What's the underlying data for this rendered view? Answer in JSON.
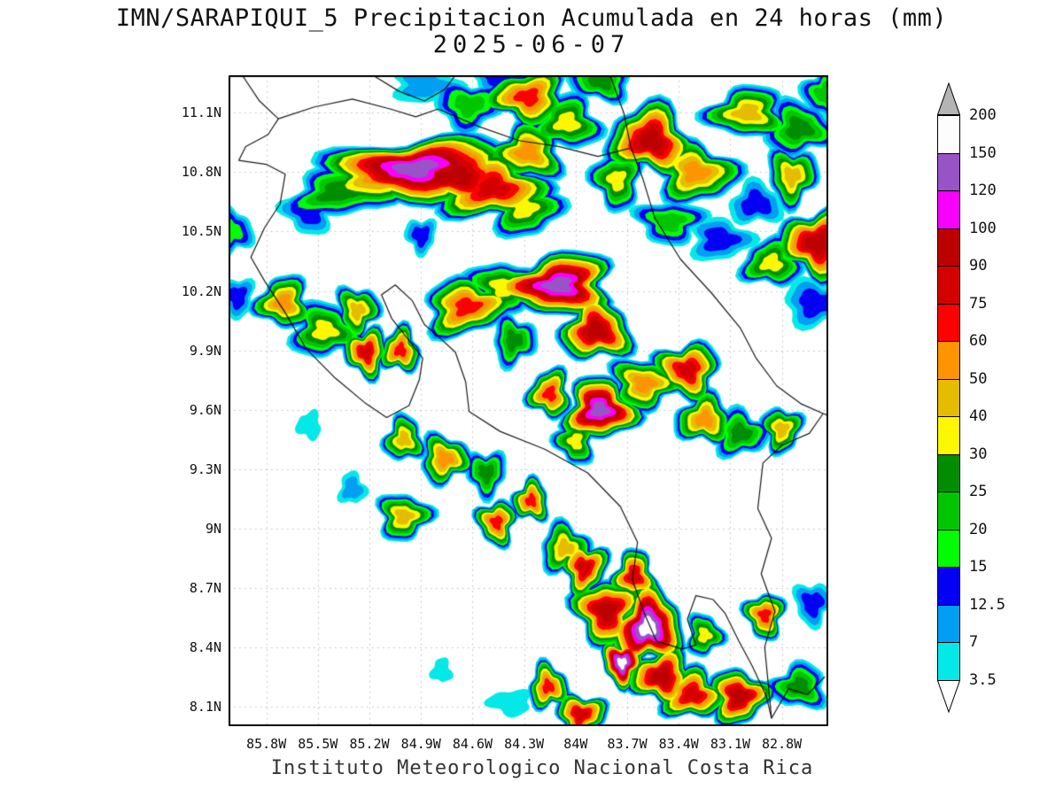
{
  "header": {
    "title": "IMN/SARAPIQUI_5 Precipitacion Acumulada en 24 horas (mm)",
    "subtitle": "2025-06-07"
  },
  "footer": {
    "credit": "Instituto Meteorologico Nacional Costa Rica"
  },
  "chart_data": {
    "type": "heatmap",
    "title": "IMN/SARAPIQUI_5 Precipitacion Acumulada en 24 horas (mm)",
    "date": "2025-06-07",
    "units": "mm",
    "region": "Costa Rica",
    "grid": true,
    "legend_position": "right",
    "extent": {
      "lon_min": -86.02,
      "lon_max": -82.53,
      "lat_min": 8.0,
      "lat_max": 11.29
    },
    "x_axis": {
      "ticks": [
        {
          "label": "85.8W",
          "lon": -85.8
        },
        {
          "label": "85.5W",
          "lon": -85.5
        },
        {
          "label": "85.2W",
          "lon": -85.2
        },
        {
          "label": "84.9W",
          "lon": -84.9
        },
        {
          "label": "84.6W",
          "lon": -84.6
        },
        {
          "label": "84.3W",
          "lon": -84.3
        },
        {
          "label": "84W",
          "lon": -84.0
        },
        {
          "label": "83.7W",
          "lon": -83.7
        },
        {
          "label": "83.4W",
          "lon": -83.4
        },
        {
          "label": "83.1W",
          "lon": -83.1
        },
        {
          "label": "82.8W",
          "lon": -82.8
        }
      ]
    },
    "y_axis": {
      "ticks": [
        {
          "label": "11.1N",
          "lat": 11.1
        },
        {
          "label": "10.8N",
          "lat": 10.8
        },
        {
          "label": "10.5N",
          "lat": 10.5
        },
        {
          "label": "10.2N",
          "lat": 10.2
        },
        {
          "label": "9.9N",
          "lat": 9.9
        },
        {
          "label": "9.6N",
          "lat": 9.6
        },
        {
          "label": "9.3N",
          "lat": 9.3
        },
        {
          "label": "9N",
          "lat": 9.0
        },
        {
          "label": "8.7N",
          "lat": 8.7
        },
        {
          "label": "8.4N",
          "lat": 8.4
        },
        {
          "label": "8.1N",
          "lat": 8.1
        }
      ]
    },
    "colorbar": {
      "levels": [
        3.5,
        7,
        12.5,
        15,
        20,
        25,
        30,
        40,
        50,
        60,
        75,
        90,
        100,
        120,
        150,
        200
      ],
      "colors": [
        "#04E9E7",
        "#019FF4",
        "#0300F4",
        "#02FD02",
        "#01C501",
        "#008E00",
        "#FDF802",
        "#E5BC00",
        "#FD9500",
        "#FD0000",
        "#D40000",
        "#BC0000",
        "#F800FD",
        "#9854C6",
        "#FDFDFD"
      ],
      "under_color": "#FFFFFF",
      "over_color": "#B4B4B4"
    },
    "cell_format": [
      "lon",
      "lat",
      "radius_deg",
      "peak_mm",
      "elongation",
      "rotation_deg"
    ],
    "precip_cells": [
      [
        -85.38,
        10.7,
        0.2,
        25,
        1.5,
        -8
      ],
      [
        -85.12,
        10.79,
        0.26,
        50,
        1.7,
        -6
      ],
      [
        -84.93,
        10.82,
        0.3,
        120,
        1.8,
        -6
      ],
      [
        -84.7,
        10.78,
        0.26,
        90,
        1.6,
        -4
      ],
      [
        -84.48,
        10.72,
        0.24,
        75,
        1.4,
        0
      ],
      [
        -84.3,
        10.62,
        0.18,
        30,
        1.2,
        8
      ],
      [
        -85.55,
        10.6,
        0.13,
        12.5,
        1.2,
        0
      ],
      [
        -84.28,
        10.9,
        0.18,
        50,
        1.2,
        0
      ],
      [
        -86.0,
        10.5,
        0.12,
        15,
        1,
        0
      ],
      [
        -84.62,
        11.14,
        0.16,
        20,
        1.3,
        0
      ],
      [
        -84.28,
        11.18,
        0.19,
        60,
        1.3,
        0
      ],
      [
        -84.05,
        11.05,
        0.17,
        30,
        1.2,
        0
      ],
      [
        -84.88,
        11.24,
        0.13,
        7,
        1.5,
        0
      ],
      [
        -84.45,
        11.28,
        0.12,
        12.5,
        1.3,
        0
      ],
      [
        -83.85,
        11.26,
        0.14,
        25,
        1.3,
        0
      ],
      [
        -83.56,
        10.96,
        0.22,
        90,
        1.2,
        18
      ],
      [
        -83.3,
        10.8,
        0.2,
        50,
        1.25,
        10
      ],
      [
        -83.76,
        10.76,
        0.15,
        30,
        1,
        0
      ],
      [
        -83.0,
        11.1,
        0.18,
        40,
        1.35,
        0
      ],
      [
        -82.7,
        11.02,
        0.17,
        25,
        1.2,
        0
      ],
      [
        -82.74,
        10.78,
        0.15,
        40,
        1,
        0
      ],
      [
        -82.6,
        10.44,
        0.2,
        90,
        1.1,
        0
      ],
      [
        -82.86,
        10.34,
        0.15,
        30,
        1.2,
        0
      ],
      [
        -83.16,
        10.46,
        0.14,
        12.5,
        1.3,
        0
      ],
      [
        -83.45,
        10.55,
        0.15,
        20,
        1.35,
        0
      ],
      [
        -82.55,
        11.2,
        0.13,
        20,
        1,
        0
      ],
      [
        -82.95,
        10.64,
        0.13,
        12.5,
        1.2,
        0
      ],
      [
        -82.6,
        10.14,
        0.15,
        12.5,
        1.3,
        0
      ],
      [
        -85.97,
        10.17,
        0.1,
        12.5,
        1,
        0
      ],
      [
        -85.7,
        10.14,
        0.15,
        50,
        1.1,
        0
      ],
      [
        -85.46,
        10.0,
        0.17,
        30,
        1.2,
        0
      ],
      [
        -85.27,
        10.1,
        0.13,
        40,
        1,
        0
      ],
      [
        -85.22,
        9.89,
        0.13,
        75,
        1,
        0
      ],
      [
        -85.02,
        9.9,
        0.12,
        60,
        1,
        0
      ],
      [
        -84.63,
        10.12,
        0.2,
        60,
        1.35,
        -8
      ],
      [
        -84.42,
        10.22,
        0.17,
        30,
        1.25,
        0
      ],
      [
        -84.1,
        10.23,
        0.24,
        120,
        1.45,
        -5
      ],
      [
        -83.88,
        10.0,
        0.19,
        90,
        1.15,
        0
      ],
      [
        -84.36,
        9.95,
        0.13,
        25,
        1,
        0
      ],
      [
        -84.9,
        10.48,
        0.09,
        12.5,
        1,
        0
      ],
      [
        -84.15,
        9.68,
        0.13,
        60,
        1,
        0
      ],
      [
        -83.86,
        9.6,
        0.19,
        120,
        1.15,
        0
      ],
      [
        -83.6,
        9.73,
        0.17,
        50,
        1.25,
        0
      ],
      [
        -83.35,
        9.8,
        0.17,
        75,
        1.15,
        0
      ],
      [
        -83.25,
        9.55,
        0.15,
        50,
        1.15,
        0
      ],
      [
        -83.04,
        9.48,
        0.14,
        25,
        1.15,
        0
      ],
      [
        -82.8,
        9.5,
        0.12,
        40,
        1,
        0
      ],
      [
        -84.0,
        9.44,
        0.12,
        30,
        1,
        0
      ],
      [
        -85.0,
        9.45,
        0.12,
        40,
        1,
        0
      ],
      [
        -84.76,
        9.35,
        0.14,
        50,
        1.1,
        0
      ],
      [
        -84.52,
        9.28,
        0.12,
        25,
        1,
        0
      ],
      [
        -85.55,
        9.52,
        0.07,
        3.5,
        1,
        0
      ],
      [
        -85.3,
        9.2,
        0.08,
        7,
        1,
        0
      ],
      [
        -85.0,
        9.06,
        0.14,
        40,
        1.15,
        0
      ],
      [
        -84.46,
        9.03,
        0.12,
        60,
        1,
        0
      ],
      [
        -84.26,
        9.14,
        0.11,
        60,
        1,
        0
      ],
      [
        -84.06,
        8.9,
        0.14,
        40,
        1.1,
        0
      ],
      [
        -83.95,
        8.8,
        0.14,
        75,
        1,
        0
      ],
      [
        -83.82,
        8.58,
        0.19,
        90,
        1.05,
        18
      ],
      [
        -83.66,
        8.76,
        0.13,
        75,
        1,
        0
      ],
      [
        -83.58,
        8.5,
        0.21,
        150,
        1,
        28
      ],
      [
        -83.73,
        8.32,
        0.12,
        150,
        1,
        0
      ],
      [
        -83.5,
        8.25,
        0.17,
        90,
        1.15,
        0
      ],
      [
        -83.32,
        8.16,
        0.16,
        75,
        1.2,
        0
      ],
      [
        -83.05,
        8.15,
        0.16,
        90,
        1.1,
        0
      ],
      [
        -82.9,
        8.56,
        0.12,
        60,
        1,
        0
      ],
      [
        -82.7,
        8.2,
        0.14,
        25,
        1.2,
        0
      ],
      [
        -84.16,
        8.2,
        0.12,
        60,
        1,
        0
      ],
      [
        -83.97,
        8.06,
        0.13,
        75,
        1.2,
        0
      ],
      [
        -84.38,
        8.12,
        0.09,
        3.5,
        1.4,
        0
      ],
      [
        -84.78,
        8.28,
        0.06,
        3.5,
        1,
        0
      ],
      [
        -83.25,
        8.46,
        0.11,
        30,
        1,
        0
      ],
      [
        -82.62,
        8.62,
        0.11,
        12.5,
        1,
        0
      ]
    ],
    "coastlines": {
      "pacific": [
        [
          -85.94,
          11.29
        ],
        [
          -85.84,
          11.16
        ],
        [
          -85.73,
          11.07
        ],
        [
          -85.79,
          10.99
        ],
        [
          -85.92,
          10.93
        ],
        [
          -85.96,
          10.86
        ],
        [
          -85.8,
          10.84
        ],
        [
          -85.69,
          10.79
        ],
        [
          -85.72,
          10.64
        ],
        [
          -85.81,
          10.52
        ],
        [
          -85.89,
          10.37
        ],
        [
          -85.81,
          10.25
        ],
        [
          -85.69,
          10.09
        ],
        [
          -85.57,
          9.91
        ],
        [
          -85.4,
          9.76
        ],
        [
          -85.22,
          9.63
        ],
        [
          -85.1,
          9.56
        ],
        [
          -84.97,
          9.62
        ],
        [
          -84.91,
          9.75
        ],
        [
          -84.89,
          9.86
        ],
        [
          -84.97,
          9.95
        ],
        [
          -85.07,
          10.06
        ],
        [
          -85.13,
          10.18
        ],
        [
          -85.05,
          10.23
        ],
        [
          -84.95,
          10.15
        ],
        [
          -84.88,
          10.03
        ],
        [
          -84.8,
          9.97
        ],
        [
          -84.7,
          9.89
        ],
        [
          -84.64,
          9.74
        ],
        [
          -84.62,
          9.59
        ],
        [
          -84.44,
          9.49
        ],
        [
          -84.18,
          9.4
        ],
        [
          -83.93,
          9.28
        ],
        [
          -83.74,
          9.11
        ],
        [
          -83.64,
          8.93
        ],
        [
          -83.67,
          8.74
        ],
        [
          -83.6,
          8.57
        ],
        [
          -83.53,
          8.43
        ],
        [
          -83.38,
          8.39
        ],
        [
          -83.3,
          8.41
        ],
        [
          -83.35,
          8.54
        ],
        [
          -83.3,
          8.66
        ],
        [
          -83.2,
          8.64
        ],
        [
          -83.13,
          8.57
        ],
        [
          -83.05,
          8.43
        ],
        [
          -82.97,
          8.3
        ],
        [
          -82.89,
          8.15
        ],
        [
          -82.86,
          8.04
        ],
        [
          -82.76,
          8.19
        ],
        [
          -82.65,
          8.16
        ],
        [
          -82.55,
          8.25
        ]
      ],
      "nicaragua_border": [
        [
          -85.73,
          11.07
        ],
        [
          -85.52,
          11.13
        ],
        [
          -85.3,
          11.17
        ],
        [
          -85.08,
          11.12
        ],
        [
          -84.93,
          11.08
        ],
        [
          -84.8,
          11.12
        ],
        [
          -84.56,
          11.03
        ],
        [
          -84.33,
          10.96
        ],
        [
          -84.1,
          10.93
        ],
        [
          -83.87,
          10.88
        ],
        [
          -83.69,
          10.92
        ]
      ],
      "lake_nicaragua": [
        [
          -85.18,
          11.29
        ],
        [
          -85.03,
          11.21
        ],
        [
          -84.88,
          11.16
        ],
        [
          -84.76,
          11.22
        ],
        [
          -84.7,
          11.29
        ]
      ],
      "caribbean": [
        [
          -83.8,
          11.29
        ],
        [
          -83.72,
          11.1
        ],
        [
          -83.68,
          10.93
        ],
        [
          -83.61,
          10.77
        ],
        [
          -83.54,
          10.57
        ],
        [
          -83.39,
          10.36
        ],
        [
          -83.21,
          10.19
        ],
        [
          -83.04,
          10.01
        ],
        [
          -82.95,
          9.86
        ],
        [
          -82.83,
          9.72
        ],
        [
          -82.69,
          9.63
        ],
        [
          -82.56,
          9.58
        ],
        [
          -82.53,
          9.57
        ]
      ],
      "panama_border": [
        [
          -82.56,
          9.58
        ],
        [
          -82.64,
          9.48
        ],
        [
          -82.8,
          9.42
        ],
        [
          -82.91,
          9.33
        ],
        [
          -82.94,
          9.1
        ],
        [
          -82.86,
          8.95
        ],
        [
          -82.92,
          8.77
        ],
        [
          -82.84,
          8.58
        ],
        [
          -82.9,
          8.4
        ],
        [
          -82.86,
          8.04
        ]
      ]
    }
  }
}
